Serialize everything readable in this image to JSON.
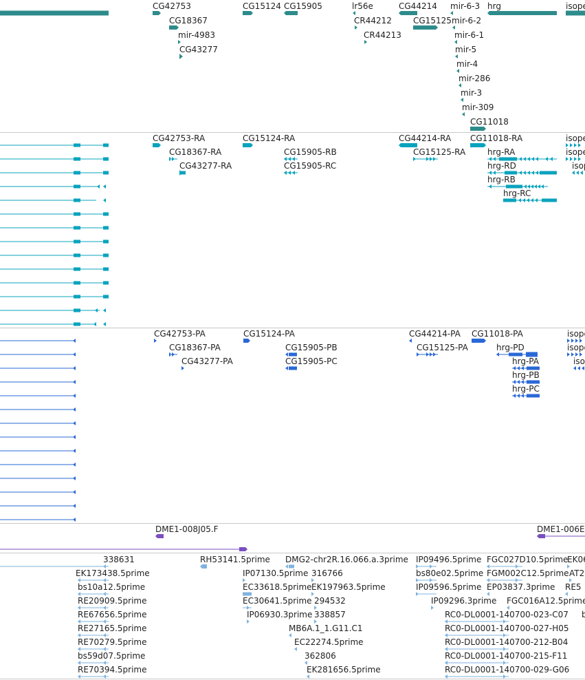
{
  "app": "genome-browser-track-view",
  "colors": {
    "gene": "#2e8b8b",
    "transcript": "#0aa3be",
    "protein": "#2a68d6",
    "clone": "#7a4fbf",
    "est": "#7fb3df",
    "separator": "#c8c8c8",
    "label": "#1f1f1f"
  },
  "tracks": [
    {
      "id": "genes",
      "name": "track-genes",
      "color_key": "gene"
    },
    {
      "id": "transcripts",
      "name": "track-transcripts",
      "color_key": "transcript"
    },
    {
      "id": "proteins",
      "name": "track-proteins",
      "color_key": "protein"
    },
    {
      "id": "clones",
      "name": "track-clones",
      "color_key": "clone"
    },
    {
      "id": "ests",
      "name": "track-ests",
      "color_key": "est"
    }
  ],
  "labels": {
    "genes": [
      "CG42753",
      "CG18367",
      "mir-4983",
      "CG43277",
      "CG15124",
      "CG15905",
      "lr56e",
      "CR44212",
      "CR44213",
      "CG44214",
      "CG15125",
      "mir-6-3",
      "mir-6-2",
      "mir-6-1",
      "mir-5",
      "mir-4",
      "mir-286",
      "mir-3",
      "mir-309",
      "CG11018",
      "hrg",
      "isope"
    ],
    "transcripts": [
      "CG42753-RA",
      "CG18367-RA",
      "CG43277-RA",
      "CG15124-RA",
      "CG15905-RB",
      "CG15905-RC",
      "CG44214-RA",
      "CG15125-RA",
      "CG11018-RA",
      "hrg-RA",
      "hrg-RD",
      "hrg-RB",
      "hrg-RC",
      "isope",
      "isope",
      "isop"
    ],
    "proteins": [
      "CG42753-PA",
      "CG18367-PA",
      "CG43277-PA",
      "CG15124-PA",
      "CG15905-PB",
      "CG15905-PC",
      "CG44214-PA",
      "CG15125-PA",
      "CG11018-PA",
      "hrg-PD",
      "hrg-PA",
      "hrg-PB",
      "hrg-PC",
      "isope",
      "isope",
      "iso"
    ],
    "clones": [
      "DME1-008J05.F",
      "DME1-006E"
    ],
    "ests": [
      "338631",
      "EK173438.5prime",
      "bs10a12.5prime",
      "RE20909.5prime",
      "RE67656.5prime",
      "RE27165.5prime",
      "RE70279.5prime",
      "bs59d07.5prime",
      "RE70394.5prime",
      "RH53141.5prime",
      "IP07130.5prime",
      "EC33618.5prime",
      "EC30641.5prime",
      "IP06930.3prime",
      "DMG2-chr2R.16.066.a.3prime",
      "316766",
      "EK197963.5prime",
      "294532",
      "338857",
      "MB6A.1_1.G11.C1",
      "EC22274.5prime",
      "362806",
      "EK281656.5prime",
      "IP09496.5prime",
      "bs80e02.5prime",
      "IP09596.5prime",
      "IP09296.3prime",
      "FGC027D10.5prime",
      "FGM002C12.5prime",
      "EP03837.3prime",
      "FGC016A12.5prime",
      "RC0-DL0001-140700-023-C07",
      "RC0-DL0001-140700-027-H05",
      "RC0-DL0001-140700-212-B04",
      "RC0-DL0001-140700-215-F11",
      "RC0-DL0001-140700-029-G06",
      "EK06",
      "AT2",
      "RE5",
      "b"
    ]
  }
}
